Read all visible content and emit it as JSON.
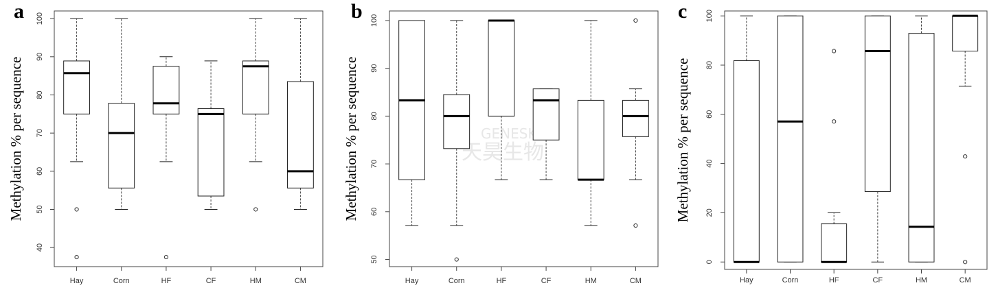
{
  "watermark": {
    "line1": "GENESKY",
    "line2": "天昊生物"
  },
  "chart_data": [
    {
      "type": "box",
      "panel": "a",
      "ylabel": "Methylation % per sequence",
      "categories": [
        "Hay",
        "Corn",
        "HF",
        "CF",
        "HM",
        "CM"
      ],
      "ylim": [
        35,
        102
      ],
      "yticks": [
        40,
        50,
        60,
        70,
        80,
        90,
        100
      ],
      "boxes": [
        {
          "low": 62.5,
          "q1": 75,
          "median": 85.7,
          "q3": 88.9,
          "high": 100,
          "outliers": [
            50,
            37.5
          ]
        },
        {
          "low": 50,
          "q1": 55.6,
          "median": 70,
          "q3": 77.8,
          "high": 100,
          "outliers": []
        },
        {
          "low": 62.5,
          "q1": 75,
          "median": 77.8,
          "q3": 87.5,
          "high": 90,
          "outliers": [
            37.5
          ]
        },
        {
          "low": 50,
          "q1": 53.5,
          "median": 75,
          "q3": 76.4,
          "high": 88.9,
          "outliers": []
        },
        {
          "low": 62.5,
          "q1": 75,
          "median": 87.5,
          "q3": 88.9,
          "high": 100,
          "outliers": [
            50
          ]
        },
        {
          "low": 50,
          "q1": 55.6,
          "median": 60,
          "q3": 83.5,
          "high": 100,
          "outliers": []
        }
      ]
    },
    {
      "type": "box",
      "panel": "b",
      "ylabel": "Methylation % per sequence",
      "categories": [
        "Hay",
        "Corn",
        "HF",
        "CF",
        "HM",
        "CM"
      ],
      "ylim": [
        48.5,
        102
      ],
      "yticks": [
        50,
        60,
        70,
        80,
        90,
        100
      ],
      "boxes": [
        {
          "low": 57.1,
          "q1": 66.7,
          "median": 83.3,
          "q3": 100,
          "high": 100,
          "outliers": []
        },
        {
          "low": 57.1,
          "q1": 73.2,
          "median": 80,
          "q3": 84.5,
          "high": 100,
          "outliers": [
            50
          ]
        },
        {
          "low": 66.7,
          "q1": 80,
          "median": 100,
          "q3": 100,
          "high": 100,
          "outliers": []
        },
        {
          "low": 66.7,
          "q1": 75,
          "median": 83.3,
          "q3": 85.7,
          "high": 85.7,
          "outliers": []
        },
        {
          "low": 57.1,
          "q1": 66.7,
          "median": 66.7,
          "q3": 83.3,
          "high": 100,
          "outliers": []
        },
        {
          "low": 66.7,
          "q1": 75.7,
          "median": 80,
          "q3": 83.3,
          "high": 85.7,
          "outliers": [
            100,
            57.1
          ]
        }
      ]
    },
    {
      "type": "box",
      "panel": "c",
      "ylabel": "Methylation % per sequence",
      "categories": [
        "Hay",
        "Corn",
        "HF",
        "CF",
        "HM",
        "CM"
      ],
      "ylim": [
        -3,
        102
      ],
      "yticks": [
        0,
        20,
        40,
        60,
        80,
        100
      ],
      "boxes": [
        {
          "low": 0,
          "q1": 0,
          "median": 0,
          "q3": 81.8,
          "high": 100,
          "outliers": []
        },
        {
          "low": 0,
          "q1": 0,
          "median": 57.1,
          "q3": 100,
          "high": 100,
          "outliers": []
        },
        {
          "low": 0,
          "q1": 0,
          "median": 0,
          "q3": 15.5,
          "high": 20,
          "outliers": [
            85.7,
            57.1
          ]
        },
        {
          "low": 0,
          "q1": 28.6,
          "median": 85.7,
          "q3": 100,
          "high": 100,
          "outliers": []
        },
        {
          "low": 0,
          "q1": 0,
          "median": 14.3,
          "q3": 92.9,
          "high": 100,
          "outliers": []
        },
        {
          "low": 71.4,
          "q1": 85.7,
          "median": 100,
          "q3": 100,
          "high": 100,
          "outliers": [
            42.9,
            0
          ]
        }
      ]
    }
  ]
}
